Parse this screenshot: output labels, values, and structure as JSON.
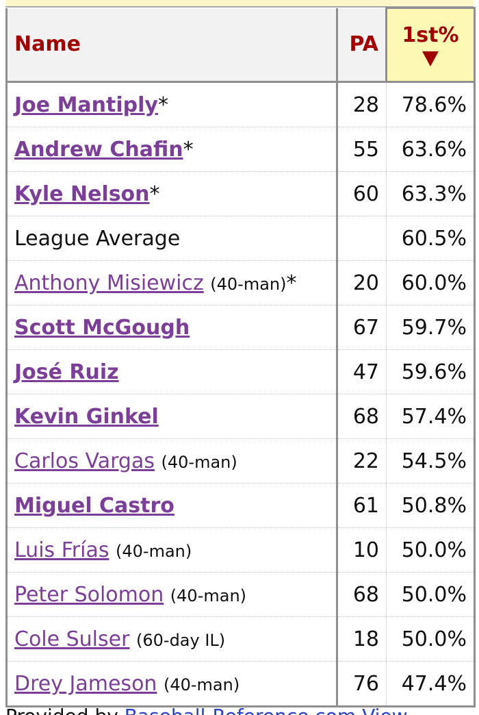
{
  "headers": {
    "name": "Name",
    "pa": "PA",
    "first_pct": "1st%"
  },
  "rows": [
    {
      "name": "Joe Mantiply",
      "bold": true,
      "status": "",
      "star": "*",
      "pa": "28",
      "first_pct": "78.6%"
    },
    {
      "name": "Andrew Chafin",
      "bold": true,
      "status": "",
      "star": "*",
      "pa": "55",
      "first_pct": "63.6%"
    },
    {
      "name": "Kyle Nelson",
      "bold": true,
      "status": "",
      "star": "*",
      "pa": "60",
      "first_pct": "63.3%"
    },
    {
      "name": "League Average",
      "plain": true,
      "status": "",
      "star": "",
      "pa": "",
      "first_pct": "60.5%"
    },
    {
      "name": "Anthony Misiewicz",
      "bold": false,
      "status": "(40-man)",
      "star": "*",
      "pa": "20",
      "first_pct": "60.0%"
    },
    {
      "name": "Scott McGough",
      "bold": true,
      "status": "",
      "star": "",
      "pa": "67",
      "first_pct": "59.7%"
    },
    {
      "name": "José Ruiz",
      "bold": true,
      "status": "",
      "star": "",
      "pa": "47",
      "first_pct": "59.6%"
    },
    {
      "name": "Kevin Ginkel",
      "bold": true,
      "status": "",
      "star": "",
      "pa": "68",
      "first_pct": "57.4%"
    },
    {
      "name": "Carlos Vargas",
      "bold": false,
      "status": "(40-man)",
      "star": "",
      "pa": "22",
      "first_pct": "54.5%"
    },
    {
      "name": "Miguel Castro",
      "bold": true,
      "status": "",
      "star": "",
      "pa": "61",
      "first_pct": "50.8%"
    },
    {
      "name": "Luis Frías",
      "bold": false,
      "status": "(40-man)",
      "star": "",
      "pa": "10",
      "first_pct": "50.0%"
    },
    {
      "name": "Peter Solomon",
      "bold": false,
      "status": "(40-man)",
      "star": "",
      "pa": "68",
      "first_pct": "50.0%"
    },
    {
      "name": "Cole Sulser",
      "bold": false,
      "status": "(60-day IL)",
      "star": "",
      "pa": "18",
      "first_pct": "50.0%"
    },
    {
      "name": "Drey Jameson",
      "bold": false,
      "status": "(40-man)",
      "star": "",
      "pa": "76",
      "first_pct": "47.4%"
    }
  ],
  "footer": {
    "prefix": "Provided by ",
    "site": "Baseball-Reference.com",
    "suffix": "View"
  },
  "colors": {
    "header_text": "#a00000",
    "player_link": "#7b3f98",
    "sorted_col_bg": "#fdf8b4"
  }
}
